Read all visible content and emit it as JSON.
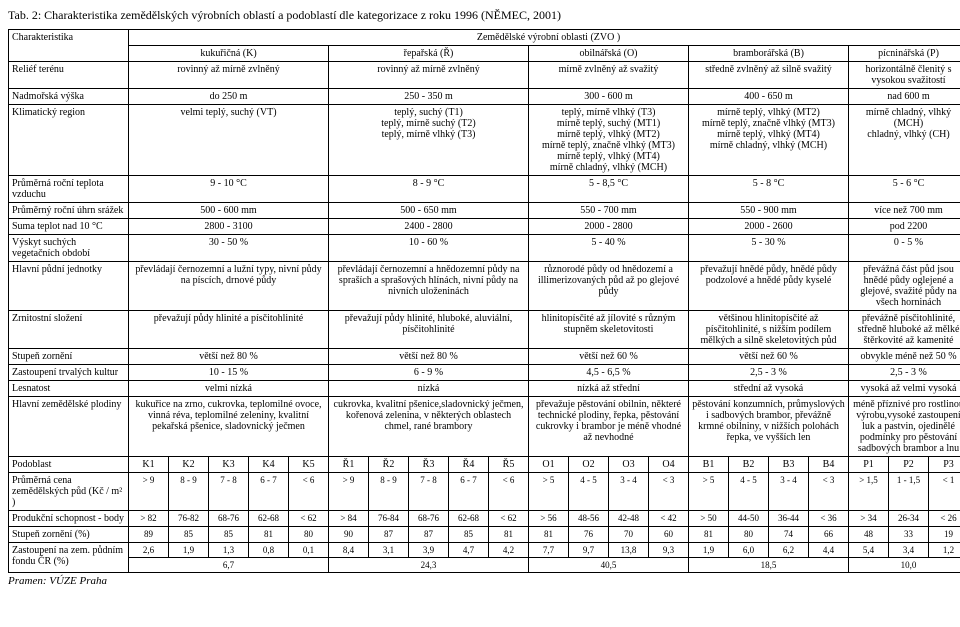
{
  "caption": "Tab. 2: Charakteristika zemědělských výrobních oblastí a podoblastí dle kategorizace z roku 1996 (NĚMEC, 2001)",
  "source": "Pramen: VÚZE Praha",
  "top_header": "Zemědělské výrobní oblasti (ZVO )",
  "col_char": "Charakteristika",
  "cols": {
    "K": "kukuřičná (K)",
    "R": "řepařská (Ř)",
    "O": "obilnářská (O)",
    "B": "bramborářská (B)",
    "P": "pícninářská (P)"
  },
  "rows": [
    {
      "label": "Reliéf terénu",
      "K": "rovinný až mírně zvlněný",
      "R": "rovinný až mírně zvlněný",
      "O": "mírně zvlněný až svažitý",
      "B": "středně zvlněný až silně svažitý",
      "P": "horizontálně členitý s vysokou svažitostí"
    },
    {
      "label": "Nadmořská výška",
      "K": "do 250 m",
      "R": "250 - 350 m",
      "O": "300 - 600 m",
      "B": "400 - 650 m",
      "P": "nad 600 m"
    },
    {
      "label": "Klimatický region",
      "K": "velmi teplý, suchý (VT)",
      "R": "teplý, suchý (T1)\nteplý, mírně suchý (T2)\nteplý, mírně vlhký (T3)",
      "O": "teplý, mírně vlhký (T3)\nmírně teplý, suchý (MT1)\nmírně teplý, vlhký (MT2)\nmírně teplý, značně vlhký (MT3)\nmírně teplý, vlhký (MT4)\nmírně chladný, vlhký (MCH)",
      "B": "mírně teplý, vlhký (MT2)\nmírně teplý, značně vlhký (MT3)\nmírně teplý, vlhký (MT4)\nmírně chladný, vlhký (MCH)",
      "P": "mírně chladný, vlhký (MCH)\nchladný, vlhký (CH)"
    },
    {
      "label": "Průměrná roční teplota vzduchu",
      "K": "9 - 10 °C",
      "R": "8 - 9 °C",
      "O": "5 - 8,5 °C",
      "B": "5 - 8 °C",
      "P": "5 - 6 °C"
    },
    {
      "label": "Průměrný roční úhrn srážek",
      "K": "500 - 600 mm",
      "R": "500 - 650 mm",
      "O": "550 - 700 mm",
      "B": "550 - 900 mm",
      "P": "více než 700 mm"
    },
    {
      "label": "Suma teplot nad 10 °C",
      "K": "2800 - 3100",
      "R": "2400 - 2800",
      "O": "2000 - 2800",
      "B": "2000 - 2600",
      "P": "pod 2200"
    },
    {
      "label": "Výskyt suchých vegetačních období",
      "K": "30 - 50 %",
      "R": "10 - 60 %",
      "O": "5 - 40 %",
      "B": "5 - 30 %",
      "P": "0 - 5 %"
    },
    {
      "label": "Hlavní půdní jednotky",
      "K": "převládají černozemní a lužní typy, nivní půdy na píscích, drnové půdy",
      "R": "převládají černozemní a hnědozemní půdy na spraších a sprašových hlínách, nivní půdy na nivních uloženinách",
      "O": "různorodé půdy od hnědozemí a illimerizovaných půd až po glejové půdy",
      "B": "převažují hnědé půdy, hnědé půdy podzolové a hnědé půdy kyselé",
      "P": "převážná část půd jsou hnědé půdy oglejené a glejové, svažité půdy na všech horninách"
    },
    {
      "label": "Zrnitostní složení",
      "K": "převažují půdy hlinité a písčitohlinité",
      "R": "převažují půdy hlinité, hluboké, aluviální, písčitohlinité",
      "O": "hlinitopísčité až jílovité s různým stupněm skeletovitosti",
      "B": "většinou hlinitopísčité až písčitohlinité, s nižším podílem mělkých a silně skeletovitých půd",
      "P": "převážně písčitohlinité, středně hluboké až mělké štěrkovité až kamenité"
    },
    {
      "label": "Stupeň zornění",
      "K": "větší než 80 %",
      "R": "větší než 80 %",
      "O": "větší než 60 %",
      "B": "větší než 60 %",
      "P": "obvykle méně než 50 %"
    },
    {
      "label": "Zastoupení trvalých kultur",
      "K": "10 - 15 %",
      "R": "6 - 9 %",
      "O": "4,5 - 6,5 %",
      "B": "2,5 - 3 %",
      "P": "2,5 - 3 %"
    },
    {
      "label": "Lesnatost",
      "K": "velmi nízká",
      "R": "nízká",
      "O": "nízká až střední",
      "B": "střední až vysoká",
      "P": "vysoká až velmi vysoká"
    },
    {
      "label": "Hlavní zemědělské plodiny",
      "K": "kukuřice na zrno, cukrovka, teplomilné ovoce, vinná réva, teplomilné zeleniny, kvalitní pekařská pšenice, sladovnický ječmen",
      "R": "cukrovka, kvalitní pšenice,sladovnický ječmen, kořenová zelenina, v některých oblastech chmel, rané brambory",
      "O": "převažuje pěstování obilnin, některé technické plodiny, řepka, pěstování cukrovky i brambor je méně vhodné až nevhodné",
      "B": "pěstování konzumních, průmyslových i sadbových brambor, převážně krmné obilniny, v nižších polohách řepka, ve vyšších len",
      "P": "méně příznivé pro rostlinou výrobu,vysoké zastoupení luk a pastvin, ojedinělé podmínky pro pěstování sadbových brambor a lnu"
    }
  ],
  "sub_header_label": "Podoblast",
  "sub_cols": [
    "K1",
    "K2",
    "K3",
    "K4",
    "K5",
    "Ř1",
    "Ř2",
    "Ř3",
    "Ř4",
    "Ř5",
    "O1",
    "O2",
    "O3",
    "O4",
    "B1",
    "B2",
    "B3",
    "B4",
    "P1",
    "P2",
    "P3"
  ],
  "sub_rows": [
    {
      "label": "Průměrná cena zemědělských půd (Kč / m² )",
      "vals": [
        "> 9",
        "8 - 9",
        "7 - 8",
        "6 - 7",
        "< 6",
        "> 9",
        "8 - 9",
        "7 - 8",
        "6 - 7",
        "< 6",
        "> 5",
        "4 - 5",
        "3 - 4",
        "< 3",
        "> 5",
        "4 - 5",
        "3 - 4",
        "< 3",
        "> 1,5",
        "1 - 1,5",
        "< 1"
      ]
    },
    {
      "label": "Produkční schopnost - body",
      "vals": [
        "> 82",
        "76-82",
        "68-76",
        "62-68",
        "< 62",
        "> 84",
        "76-84",
        "68-76",
        "62-68",
        "< 62",
        "> 56",
        "48-56",
        "42-48",
        "< 42",
        "> 50",
        "44-50",
        "36-44",
        "< 36",
        "> 34",
        "26-34",
        "< 26"
      ]
    },
    {
      "label": "Stupeň zornění (%)",
      "vals": [
        "89",
        "85",
        "85",
        "81",
        "80",
        "90",
        "87",
        "87",
        "85",
        "81",
        "81",
        "76",
        "70",
        "60",
        "81",
        "80",
        "74",
        "66",
        "48",
        "33",
        "19"
      ]
    }
  ],
  "last_row": {
    "label": "Zastoupení na zem. půdním fondu ČR (%)",
    "top": [
      "2,6",
      "1,9",
      "1,3",
      "0,8",
      "0,1",
      "8,4",
      "3,1",
      "3,9",
      "4,7",
      "4,2",
      "7,7",
      "9,7",
      "13,8",
      "9,3",
      "1,9",
      "6,0",
      "6,2",
      "4,4",
      "5,4",
      "3,4",
      "1,2"
    ],
    "bottom": [
      "6,7",
      "24,3",
      "40,5",
      "18,5",
      "10,0"
    ]
  }
}
